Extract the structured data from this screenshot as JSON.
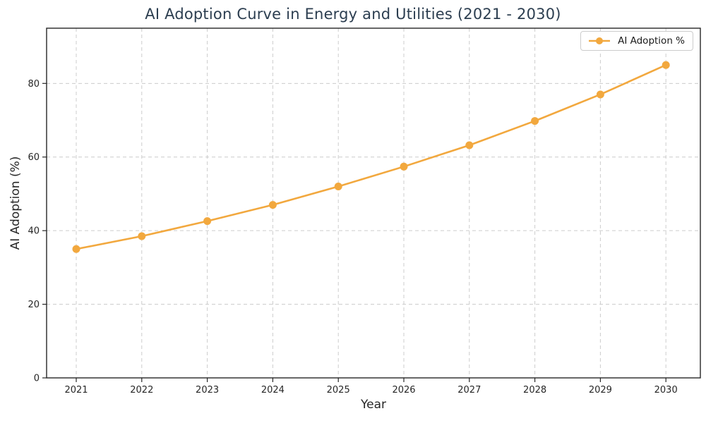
{
  "chart_data": {
    "type": "line",
    "title": "AI Adoption Curve in Energy and Utilities (2021 - 2030)",
    "xlabel": "Year",
    "ylabel": "AI Adoption (%)",
    "categories": [
      "2021",
      "2022",
      "2023",
      "2024",
      "2025",
      "2026",
      "2027",
      "2028",
      "2029",
      "2030"
    ],
    "series": [
      {
        "name": "AI Adoption %",
        "values": [
          35,
          38.5,
          42.6,
          47,
          52,
          57.4,
          63.2,
          69.8,
          77,
          85
        ]
      }
    ],
    "ylim": [
      0,
      95
    ],
    "yticks": [
      0,
      20,
      40,
      60,
      80
    ],
    "grid": "dashed-both-axes",
    "legend_position": "upper-right",
    "marker": "circle",
    "colors": {
      "line": "#F2A83E",
      "grid": "#CCCCCC",
      "spine": "#262626",
      "tick_text": "#262626",
      "title_text": "#2C3E50",
      "legend_border": "#CCCCCC",
      "legend_background": "#FFFFFF"
    }
  }
}
